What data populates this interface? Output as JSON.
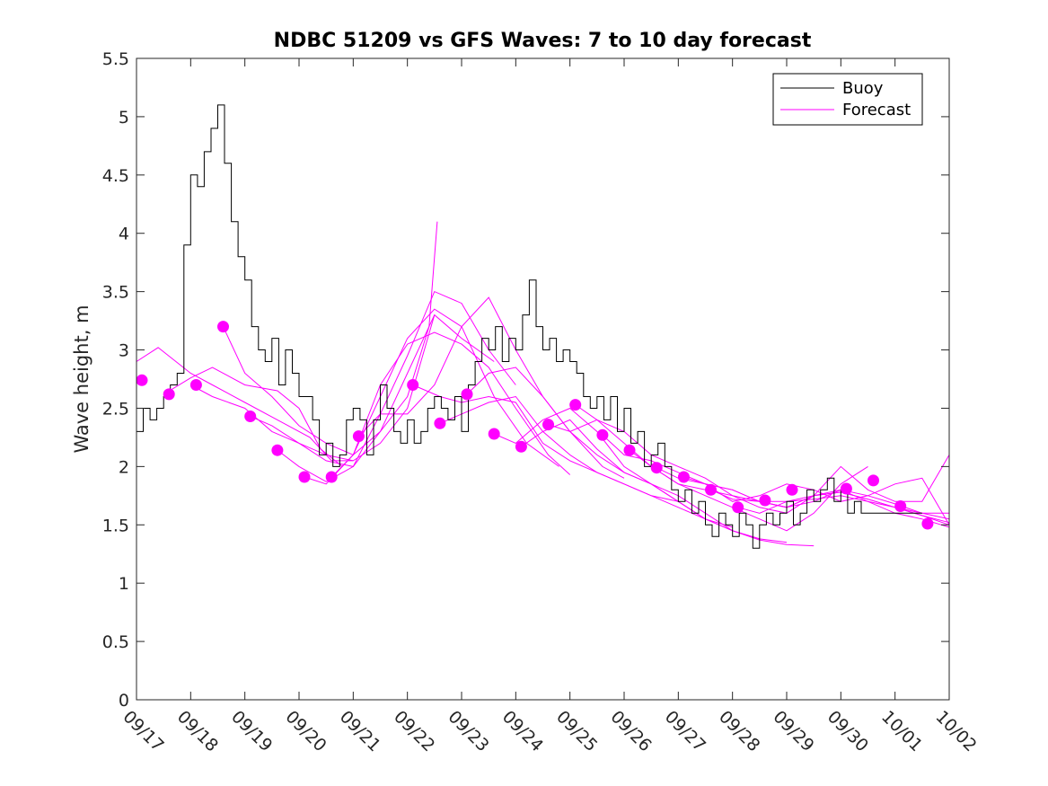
{
  "chart_data": {
    "type": "line",
    "title": "NDBC 51209 vs GFS Waves: 7 to 10 day forecast",
    "xlabel": "",
    "ylabel": "Wave height, m",
    "xlim": [
      0,
      15
    ],
    "ylim": [
      0,
      5.5
    ],
    "yticks": [
      0,
      0.5,
      1,
      1.5,
      2,
      2.5,
      3,
      3.5,
      4,
      4.5,
      5,
      5.5
    ],
    "ytick_labels": [
      "0",
      "0.5",
      "1",
      "1.5",
      "2",
      "2.5",
      "3",
      "3.5",
      "4",
      "4.5",
      "5",
      "5.5"
    ],
    "xtick_labels": [
      "09/17",
      "09/18",
      "09/19",
      "09/20",
      "09/21",
      "09/22",
      "09/23",
      "09/24",
      "09/25",
      "09/26",
      "09/27",
      "09/28",
      "09/29",
      "09/30",
      "10/01",
      "10/02"
    ],
    "grid": false,
    "legend": {
      "position": "top-right",
      "entries": [
        "Buoy",
        "Forecast"
      ]
    },
    "colors": {
      "buoy": "#000000",
      "forecast": "#ff00ff",
      "axes": "#262626"
    },
    "buoy": {
      "name": "Buoy",
      "x": [
        0,
        0.125,
        0.25,
        0.375,
        0.5,
        0.625,
        0.75,
        0.875,
        1.0,
        1.125,
        1.25,
        1.375,
        1.5,
        1.625,
        1.75,
        1.875,
        2.0,
        2.125,
        2.25,
        2.375,
        2.5,
        2.625,
        2.75,
        2.875,
        3.0,
        3.125,
        3.25,
        3.375,
        3.5,
        3.625,
        3.75,
        3.875,
        4.0,
        4.125,
        4.25,
        4.375,
        4.5,
        4.625,
        4.75,
        4.875,
        5.0,
        5.125,
        5.25,
        5.375,
        5.5,
        5.625,
        5.75,
        5.875,
        6.0,
        6.125,
        6.25,
        6.375,
        6.5,
        6.625,
        6.75,
        6.875,
        7.0,
        7.125,
        7.25,
        7.375,
        7.5,
        7.625,
        7.75,
        7.875,
        8.0,
        8.125,
        8.25,
        8.375,
        8.5,
        8.625,
        8.75,
        8.875,
        9.0,
        9.125,
        9.25,
        9.375,
        9.5,
        9.625,
        9.75,
        9.875,
        10.0,
        10.125,
        10.25,
        10.375,
        10.5,
        10.625,
        10.75,
        10.875,
        11.0,
        11.125,
        11.25,
        11.375,
        11.5,
        11.625,
        11.75,
        11.875,
        12.0,
        12.125,
        12.25,
        12.375,
        12.5,
        12.625,
        12.75,
        12.875,
        13.0,
        13.125,
        13.25,
        13.375,
        13.5,
        13.625,
        13.75,
        13.875,
        14.0,
        14.125,
        14.25,
        14.375
      ],
      "values": [
        2.3,
        2.5,
        2.4,
        2.5,
        2.6,
        2.7,
        2.8,
        3.9,
        4.5,
        4.4,
        4.7,
        4.9,
        5.1,
        4.6,
        4.1,
        3.8,
        3.6,
        3.2,
        3.0,
        2.9,
        3.1,
        2.7,
        3.0,
        2.8,
        2.6,
        2.6,
        2.4,
        2.1,
        2.2,
        2.0,
        2.1,
        2.4,
        2.5,
        2.4,
        2.1,
        2.4,
        2.7,
        2.5,
        2.3,
        2.2,
        2.4,
        2.2,
        2.3,
        2.5,
        2.6,
        2.5,
        2.4,
        2.6,
        2.3,
        2.7,
        2.9,
        3.1,
        3.0,
        3.2,
        2.9,
        3.1,
        3.0,
        3.3,
        3.6,
        3.2,
        3.0,
        3.1,
        2.9,
        3.0,
        2.9,
        2.8,
        2.6,
        2.5,
        2.6,
        2.4,
        2.6,
        2.3,
        2.5,
        2.2,
        2.3,
        2.0,
        2.1,
        2.2,
        2.0,
        1.8,
        1.7,
        1.8,
        1.6,
        1.7,
        1.5,
        1.4,
        1.6,
        1.5,
        1.4,
        1.6,
        1.5,
        1.3,
        1.5,
        1.6,
        1.5,
        1.6,
        1.7,
        1.5,
        1.6,
        1.8,
        1.7,
        1.8,
        1.9,
        1.7,
        1.8,
        1.6,
        1.7,
        1.6,
        1.6,
        1.6,
        1.6,
        1.6,
        1.6,
        1.6,
        1.6,
        1.6
      ]
    },
    "forecast_series": [
      {
        "name": "Forecast",
        "x": [
          0,
          0.4,
          1.0,
          1.4,
          2.0,
          2.6,
          3.2,
          3.6,
          4.0
        ],
        "values": [
          2.9,
          3.02,
          2.8,
          2.7,
          2.55,
          2.4,
          2.25,
          2.05,
          2.05
        ]
      },
      {
        "name": "Forecast",
        "x": [
          0.5,
          1.0,
          1.4,
          2.0,
          2.6,
          3.0,
          3.4,
          3.8
        ],
        "values": [
          2.62,
          2.76,
          2.85,
          2.7,
          2.65,
          2.5,
          2.15,
          2.0
        ]
      },
      {
        "name": "Forecast",
        "x": [
          1.0,
          1.4,
          2.0,
          2.5,
          3.0,
          3.5,
          4.0,
          4.5,
          5.0,
          5.5
        ],
        "values": [
          2.7,
          2.6,
          2.5,
          2.3,
          2.2,
          2.1,
          2.05,
          2.2,
          2.5,
          3.3
        ]
      },
      {
        "name": "Forecast",
        "x": [
          1.6,
          2.0,
          2.5,
          3.0,
          3.5,
          4.0,
          4.5,
          5.0,
          5.4,
          5.55
        ],
        "values": [
          3.2,
          2.8,
          2.6,
          2.35,
          2.2,
          2.1,
          2.3,
          2.6,
          3.2,
          4.1
        ]
      },
      {
        "name": "Forecast",
        "x": [
          2.1,
          2.5,
          3.0,
          3.5,
          4.0,
          4.5,
          5.0,
          5.5,
          6.0,
          6.6
        ],
        "values": [
          2.43,
          2.35,
          2.2,
          2.05,
          2.0,
          2.3,
          2.8,
          3.3,
          3.1,
          2.9
        ]
      },
      {
        "name": "Forecast",
        "x": [
          2.6,
          3.0,
          3.5,
          4.0,
          4.5,
          5.0,
          5.5,
          6.0,
          6.5,
          7.0
        ],
        "values": [
          2.14,
          2.0,
          1.87,
          2.0,
          2.45,
          2.95,
          3.5,
          3.4,
          3.0,
          2.7
        ]
      },
      {
        "name": "Forecast",
        "x": [
          3.1,
          3.5,
          4.0,
          4.5,
          5.0,
          5.5,
          6.0,
          6.6,
          7.2,
          7.8
        ],
        "values": [
          1.91,
          1.85,
          2.1,
          2.6,
          3.1,
          3.35,
          3.2,
          2.6,
          2.2,
          2.0
        ]
      },
      {
        "name": "Forecast",
        "x": [
          3.6,
          4.0,
          4.5,
          5.0,
          5.5,
          6.0,
          6.5,
          7.0,
          7.6,
          8.0
        ],
        "values": [
          1.91,
          2.1,
          2.7,
          3.05,
          3.15,
          3.05,
          2.85,
          2.5,
          2.1,
          1.93
        ]
      },
      {
        "name": "Forecast",
        "x": [
          4.1,
          4.5,
          5.0,
          5.5,
          6.0,
          6.5,
          7.0,
          7.5,
          8.0,
          8.6,
          9.0
        ],
        "values": [
          2.26,
          2.45,
          2.45,
          2.7,
          3.2,
          3.45,
          3.0,
          2.6,
          2.3,
          2.0,
          1.9
        ]
      },
      {
        "name": "Forecast",
        "x": [
          5.1,
          5.6,
          6.0,
          6.5,
          7.0,
          7.5,
          8.0,
          8.5,
          9.0,
          9.5,
          10.0
        ],
        "values": [
          2.7,
          2.6,
          2.55,
          2.6,
          2.55,
          2.2,
          2.05,
          1.95,
          1.85,
          1.75,
          1.7
        ]
      },
      {
        "name": "Forecast",
        "x": [
          5.6,
          6.0,
          6.5,
          7.0,
          7.5,
          8.0,
          8.5,
          9.0,
          9.5,
          10.0,
          10.5,
          11.0
        ],
        "values": [
          2.37,
          2.45,
          2.55,
          2.6,
          2.3,
          2.1,
          1.95,
          1.85,
          1.75,
          1.65,
          1.55,
          1.48
        ]
      },
      {
        "name": "Forecast",
        "x": [
          6.1,
          6.5,
          7.0,
          7.5,
          8.0,
          8.5,
          9.0,
          9.5,
          10.0,
          10.5,
          11.0,
          11.5
        ],
        "values": [
          2.62,
          2.8,
          2.85,
          2.6,
          2.3,
          2.1,
          1.95,
          1.85,
          1.7,
          1.55,
          1.45,
          1.38
        ]
      },
      {
        "name": "Forecast",
        "x": [
          6.6,
          7.0,
          7.5,
          8.0,
          8.5,
          9.0,
          9.5,
          10.0,
          10.5,
          11.0,
          11.5,
          12.0
        ],
        "values": [
          2.28,
          2.2,
          2.4,
          2.5,
          2.3,
          2.0,
          1.85,
          1.7,
          1.55,
          1.45,
          1.38,
          1.35
        ]
      },
      {
        "name": "Forecast",
        "x": [
          7.1,
          7.5,
          8.0,
          8.5,
          9.0,
          9.5,
          10.0,
          10.5,
          11.0,
          11.5,
          12.0,
          12.5
        ],
        "values": [
          2.17,
          2.3,
          2.4,
          2.15,
          1.95,
          1.85,
          1.75,
          1.6,
          1.45,
          1.37,
          1.33,
          1.32
        ]
      },
      {
        "name": "Forecast",
        "x": [
          7.6,
          8.0,
          8.5,
          9.0,
          9.5,
          10.0,
          10.5,
          11.0,
          11.5,
          12.0,
          12.5,
          13.0,
          13.5
        ],
        "values": [
          2.36,
          2.3,
          2.4,
          2.2,
          2.0,
          1.85,
          1.75,
          1.65,
          1.55,
          1.45,
          1.6,
          1.85,
          2.0
        ]
      },
      {
        "name": "Forecast",
        "x": [
          8.1,
          8.5,
          9.0,
          9.5,
          10.0,
          10.5,
          11.0,
          11.5,
          12.0,
          12.5,
          13.0,
          13.5,
          14.0,
          14.5,
          15.0
        ],
        "values": [
          2.53,
          2.4,
          2.3,
          2.1,
          2.0,
          1.9,
          1.75,
          1.7,
          1.65,
          1.75,
          2.0,
          1.8,
          1.7,
          1.7,
          2.1
        ]
      },
      {
        "name": "Forecast",
        "x": [
          8.6,
          9.0,
          9.5,
          10.0,
          10.5,
          11.0,
          11.5,
          12.0,
          12.5,
          13.0,
          13.5,
          14.0,
          14.5,
          15.0
        ],
        "values": [
          2.27,
          2.1,
          2.05,
          1.95,
          1.85,
          1.7,
          1.75,
          1.85,
          1.8,
          1.7,
          1.75,
          1.85,
          1.9,
          1.5
        ]
      },
      {
        "name": "Forecast",
        "x": [
          9.1,
          9.5,
          10.0,
          10.5,
          11.0,
          11.5,
          12.0,
          12.5,
          13.0,
          13.5,
          14.0,
          14.5,
          15.0
        ],
        "values": [
          2.14,
          2.0,
          1.85,
          1.8,
          1.75,
          1.65,
          1.6,
          1.75,
          1.8,
          1.7,
          1.65,
          1.6,
          1.6
        ]
      },
      {
        "name": "Forecast",
        "x": [
          9.6,
          10.0,
          10.5,
          11.0,
          11.5,
          12.0,
          12.5,
          13.0,
          13.5,
          14.0,
          14.5,
          15.0
        ],
        "values": [
          1.99,
          1.9,
          1.85,
          1.8,
          1.7,
          1.65,
          1.7,
          1.8,
          1.75,
          1.68,
          1.6,
          1.55
        ]
      },
      {
        "name": "Forecast",
        "x": [
          10.1,
          10.5,
          11.0,
          11.5,
          12.0,
          12.5,
          13.0,
          13.5,
          14.0,
          14.5,
          15.0
        ],
        "values": [
          1.91,
          1.85,
          1.8,
          1.7,
          1.65,
          1.75,
          1.78,
          1.72,
          1.65,
          1.58,
          1.5
        ]
      },
      {
        "name": "Forecast",
        "x": [
          10.6,
          11.0,
          11.5,
          12.0,
          12.5,
          13.0,
          13.5,
          14.0,
          14.5,
          15.0
        ],
        "values": [
          1.8,
          1.72,
          1.7,
          1.7,
          1.72,
          1.75,
          1.7,
          1.6,
          1.55,
          1.48
        ]
      },
      {
        "name": "Forecast",
        "x": [
          11.1,
          11.5,
          12.0,
          12.5,
          13.0,
          13.5,
          14.0,
          14.5,
          15.0
        ],
        "values": [
          1.65,
          1.6,
          1.7,
          1.75,
          1.78,
          1.72,
          1.65,
          1.58,
          1.52
        ]
      }
    ],
    "forecast_markers": {
      "x": [
        0.1,
        0.6,
        1.1,
        1.6,
        2.1,
        2.6,
        3.1,
        3.6,
        4.1,
        5.1,
        5.6,
        6.1,
        6.6,
        7.1,
        7.6,
        8.1,
        8.6,
        9.1,
        9.6,
        10.1,
        10.6,
        11.1,
        11.6,
        12.1,
        13.1,
        13.6,
        14.1,
        14.6
      ],
      "values": [
        2.74,
        2.62,
        2.7,
        3.2,
        2.43,
        2.14,
        1.91,
        1.91,
        2.26,
        2.7,
        2.37,
        2.62,
        2.28,
        2.17,
        2.36,
        2.53,
        2.27,
        2.14,
        1.99,
        1.91,
        1.8,
        1.65,
        1.71,
        1.8,
        1.81,
        1.88,
        1.66,
        1.51
      ]
    }
  }
}
